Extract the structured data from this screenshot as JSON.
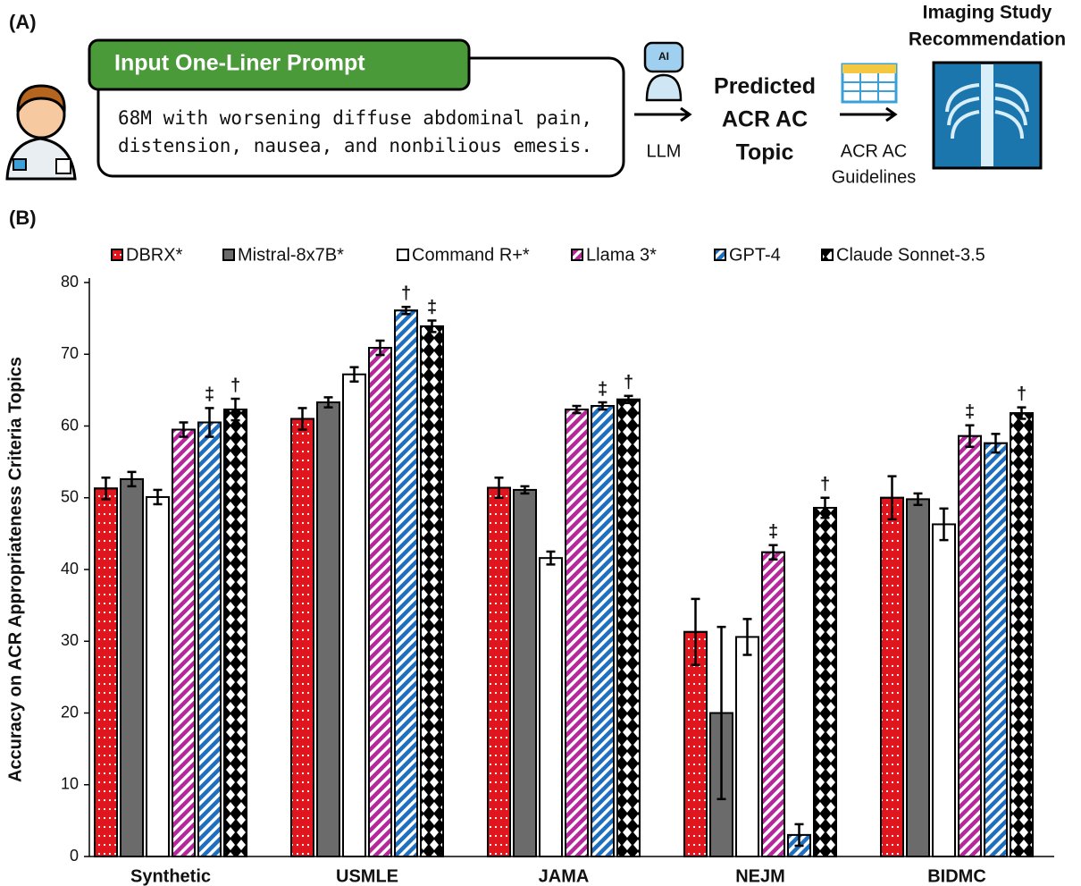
{
  "panel_a": {
    "label": "(A)",
    "prompt_header": "Input One-Liner Prompt",
    "prompt_lines": [
      "68M with worsening diffuse abdominal pain,",
      "distension, nausea, and nonbilious emesis."
    ],
    "robot_icon": "AI",
    "arrow_1_label": "LLM",
    "topic_lines": [
      "Predicted",
      "ACR AC",
      "Topic"
    ],
    "arrow_2_lines": [
      "ACR AC",
      "Guidelines"
    ],
    "output_lines": [
      "Imaging Study",
      "Recommendation"
    ]
  },
  "chart_data": {
    "type": "bar",
    "panel_label": "(B)",
    "y_label": "Accuracy on ACR Appropriateness Criteria Topics",
    "categories": [
      "Synthetic",
      "USMLE",
      "JAMA",
      "NEJM",
      "BIDMC"
    ],
    "ylim": [
      0,
      80
    ],
    "yticks": [
      0,
      10,
      20,
      30,
      40,
      50,
      60,
      70,
      80
    ],
    "grid": false,
    "legend": "top",
    "series": [
      {
        "name": "DBRX*",
        "color": "#e0161f",
        "hatch": "dots",
        "values": [
          51.3,
          61.0,
          51.4,
          31.3,
          50.0
        ],
        "errors": [
          1.5,
          1.5,
          1.4,
          4.6,
          3.0
        ],
        "annotations": [
          null,
          null,
          null,
          null,
          null
        ]
      },
      {
        "name": "Mistral-8x7B*",
        "color": "#6b6b6b",
        "hatch": "none",
        "values": [
          52.6,
          63.3,
          51.1,
          20.0,
          49.8
        ],
        "errors": [
          1.0,
          0.7,
          0.5,
          12.0,
          0.8
        ],
        "annotations": [
          null,
          null,
          null,
          null,
          null
        ]
      },
      {
        "name": "Command R+*",
        "color": "#ffffff",
        "hatch": "none",
        "values": [
          50.1,
          67.2,
          41.6,
          30.6,
          46.3
        ],
        "errors": [
          1.0,
          1.0,
          0.9,
          2.5,
          2.2
        ],
        "annotations": [
          null,
          null,
          null,
          null,
          null
        ]
      },
      {
        "name": "Llama 3*",
        "color": "#b5279a",
        "hatch": "stripes",
        "values": [
          59.5,
          70.9,
          62.3,
          42.4,
          58.6
        ],
        "errors": [
          1.0,
          1.0,
          0.5,
          1.0,
          1.5
        ],
        "annotations": [
          null,
          null,
          null,
          "‡",
          "‡"
        ]
      },
      {
        "name": "GPT-4",
        "color": "#1f6fc0",
        "hatch": "stripes",
        "values": [
          60.5,
          76.1,
          62.8,
          3.0,
          57.6
        ],
        "errors": [
          2.0,
          0.5,
          0.5,
          1.5,
          1.3
        ],
        "annotations": [
          "‡",
          "†",
          "‡",
          null,
          null
        ]
      },
      {
        "name": "Claude Sonnet-3.5",
        "color": "#000000",
        "hatch": "diamonds",
        "values": [
          62.3,
          73.9,
          63.7,
          48.6,
          61.8
        ],
        "errors": [
          1.5,
          0.8,
          0.5,
          1.4,
          0.8
        ],
        "annotations": [
          "†",
          "‡",
          "†",
          "†",
          "†"
        ]
      }
    ]
  }
}
